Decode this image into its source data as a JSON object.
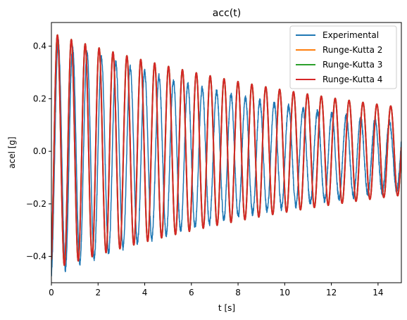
{
  "chart_data": {
    "type": "line",
    "title": "acc(t)",
    "xlabel": "t [s]",
    "ylabel": "acel [g]",
    "xlim": [
      0,
      15
    ],
    "ylim": [
      -0.5,
      0.49
    ],
    "xticks": [
      0,
      2,
      4,
      6,
      8,
      10,
      12,
      14
    ],
    "yticks": [
      -0.4,
      -0.2,
      0.0,
      0.2,
      0.4
    ],
    "xtick_labels": [
      "0",
      "2",
      "4",
      "6",
      "8",
      "10",
      "12",
      "14"
    ],
    "ytick_labels": [
      "−0.4",
      "−0.2",
      "0.0",
      "0.2",
      "0.4"
    ],
    "grid": false,
    "legend_position": "top-right",
    "series": [
      {
        "name": "Experimental",
        "color": "#1f77b4",
        "model": "damped-oscillation",
        "amplitude": 0.45,
        "frequency_hz": 1.62,
        "decay_per_s": 0.085,
        "phase": 3.3,
        "offset": -0.02,
        "t_start": 0,
        "t_end": 15,
        "samples": 3000,
        "noise": 0.012
      },
      {
        "name": "Runge-Kutta 2",
        "color": "#ff7f0e",
        "model": "damped-oscillation",
        "amplitude": 0.45,
        "frequency_hz": 1.68,
        "decay_per_s": 0.066,
        "phase": 3.55,
        "offset": 0,
        "t_start": 0,
        "t_end": 15,
        "samples": 3000,
        "noise": 0
      },
      {
        "name": "Runge-Kutta 3",
        "color": "#2ca02c",
        "model": "damped-oscillation",
        "amplitude": 0.45,
        "frequency_hz": 1.68,
        "decay_per_s": 0.066,
        "phase": 3.55,
        "offset": 0,
        "t_start": 0,
        "t_end": 15,
        "samples": 3000,
        "noise": 0
      },
      {
        "name": "Runge-Kutta 4",
        "color": "#d62728",
        "model": "damped-oscillation",
        "amplitude": 0.45,
        "frequency_hz": 1.68,
        "decay_per_s": 0.066,
        "phase": 3.55,
        "offset": 0,
        "t_start": 0,
        "t_end": 15,
        "samples": 3000,
        "noise": 0
      }
    ]
  }
}
